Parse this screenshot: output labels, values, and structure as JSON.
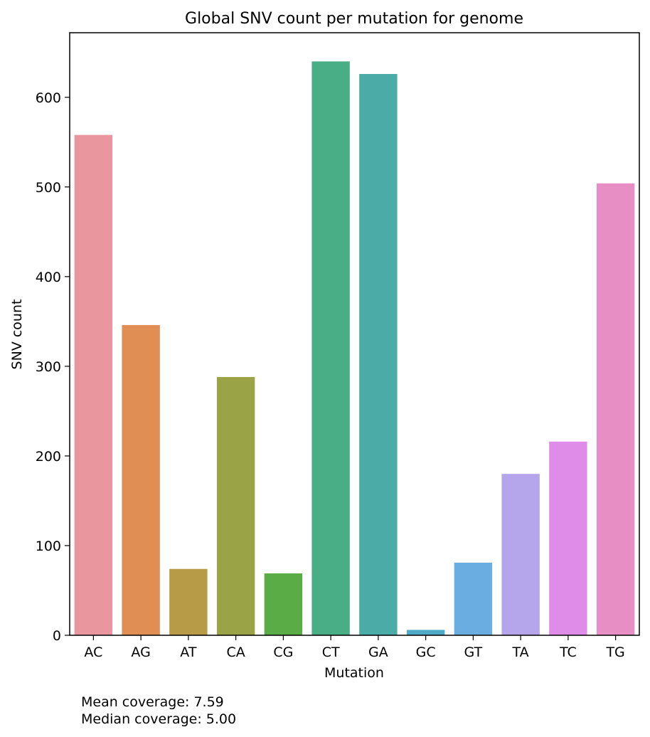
{
  "chart_data": {
    "type": "bar",
    "title": "Global SNV count per mutation for genome",
    "xlabel": "Mutation",
    "ylabel": "SNV count",
    "categories": [
      "AC",
      "AG",
      "AT",
      "CA",
      "CG",
      "CT",
      "GA",
      "GC",
      "GT",
      "TA",
      "TC",
      "TG"
    ],
    "values": [
      558,
      346,
      74,
      288,
      69,
      640,
      626,
      6,
      81,
      180,
      216,
      504
    ],
    "colors": [
      "#e9969f",
      "#e08e53",
      "#b89b47",
      "#9aa447",
      "#5aac47",
      "#49ae85",
      "#4aaba7",
      "#4eaac6",
      "#6aaee1",
      "#b5a6ec",
      "#df8be8",
      "#e78fc5"
    ],
    "yticks": [
      0,
      100,
      200,
      300,
      400,
      500,
      600
    ],
    "ylim": [
      0,
      672
    ],
    "grid": false,
    "legend": "none"
  },
  "notes": {
    "mean": "Mean coverage: 7.59",
    "median": "Median coverage: 5.00"
  }
}
